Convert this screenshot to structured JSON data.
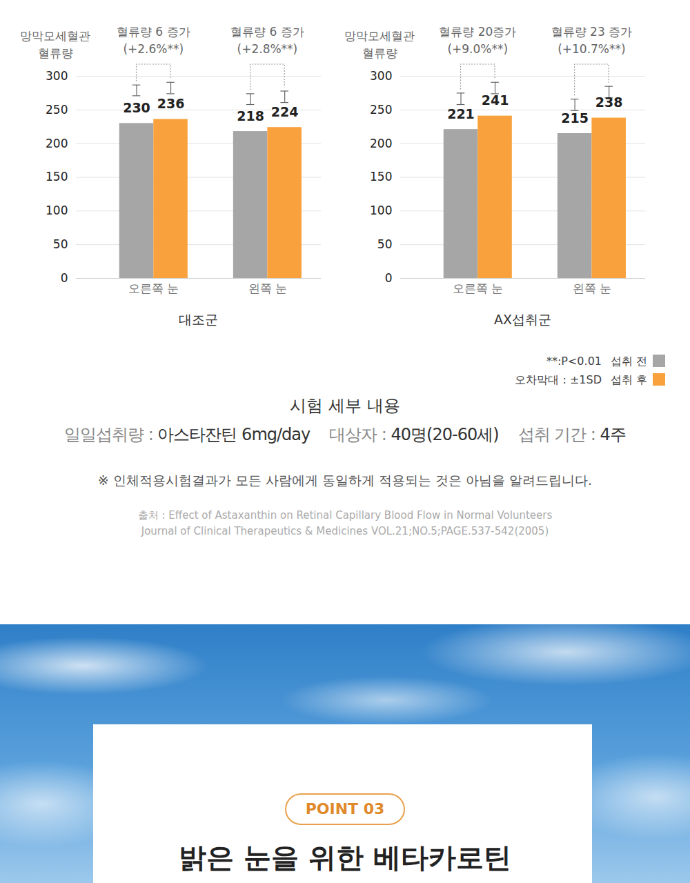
{
  "chart_data": [
    {
      "type": "bar",
      "title": "대조군",
      "ylabel": "망막모세혈관 혈류량",
      "categories": [
        "오른쪽 눈",
        "왼쪽 눈"
      ],
      "series": [
        {
          "name": "섭취 전",
          "color": "#a6a6a6",
          "values": [
            230,
            218
          ],
          "error_bars": [
            [
              271,
              287
            ],
            [
              258,
              274
            ]
          ]
        },
        {
          "name": "섭취 후",
          "color": "#f8a13d",
          "values": [
            236,
            224
          ],
          "error_bars": [
            [
              274,
              291
            ],
            [
              261,
              278
            ]
          ]
        }
      ],
      "annotations": [
        {
          "text": "혈류량 6 증가",
          "note": "(+2.6%**)"
        },
        {
          "text": "혈류량 6 증가",
          "note": "(+2.8%**)"
        }
      ],
      "ylim": [
        0,
        300
      ],
      "yticks": [
        0,
        50,
        100,
        150,
        200,
        250,
        300
      ],
      "grid": true,
      "data_labels": true
    },
    {
      "type": "bar",
      "title": "AX섭취군",
      "ylabel": "망막모세혈관 혈류량",
      "categories": [
        "오른쪽 눈",
        "왼쪽 눈"
      ],
      "series": [
        {
          "name": "섭취 전",
          "color": "#a6a6a6",
          "values": [
            221,
            215
          ],
          "error_bars": [
            [
              258,
              275
            ],
            [
              249,
              266
            ]
          ]
        },
        {
          "name": "섭취 후",
          "color": "#f8a13d",
          "values": [
            241,
            238
          ],
          "error_bars": [
            [
              274,
              291
            ],
            [
              268,
              285
            ]
          ]
        }
      ],
      "annotations": [
        {
          "text": "혈류량 20증가",
          "note": "(+9.0%**)"
        },
        {
          "text": "혈류량 23 증가",
          "note": "(+10.7%**)"
        }
      ],
      "ylim": [
        0,
        300
      ],
      "yticks": [
        0,
        50,
        100,
        150,
        200,
        250,
        300
      ],
      "grid": true,
      "data_labels": true,
      "legend": "bottom-right"
    }
  ],
  "legend_notes": [
    "**:P<0.01",
    "오차막대 : ±1SD"
  ],
  "details": {
    "title": "시험 세부 내용",
    "items": [
      {
        "label": "일일섭취량 : ",
        "value": "아스타잔틴 6mg/day"
      },
      {
        "label": "대상자 : ",
        "value": "40명(20-60세)"
      },
      {
        "label": "섭취 기간 : ",
        "value": "4주"
      }
    ]
  },
  "notice": "※ 인체적용시험결과가 모든 사람에게 동일하게 적용되는 것은 아님을 알려드립니다.",
  "source": [
    "출처 : Effect of Astaxanthin on Retinal Capillary Blood Flow in Normal Volunteers",
    "Journal of Clinical Therapeutics & Medicines VOL.21;NO.5;PAGE.537-542(2005)"
  ],
  "point": {
    "badge": "POINT 03",
    "headline": "밝은 눈을 위한 베타카로틴"
  }
}
